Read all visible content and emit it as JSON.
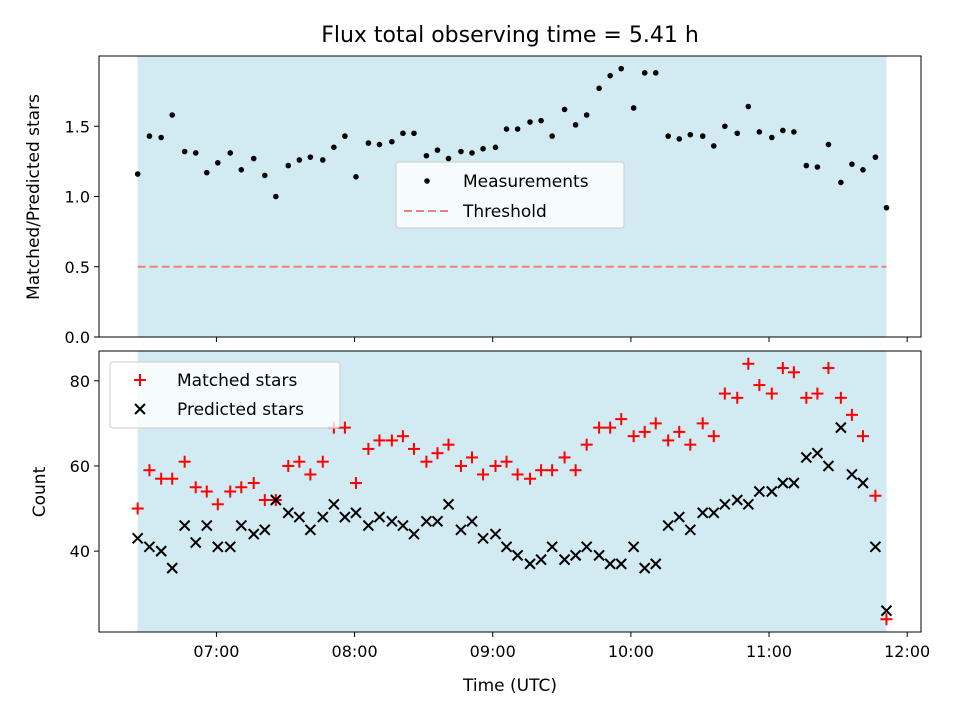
{
  "chart_data": [
    {
      "type": "scatter",
      "title": "Flux total observing time = 5.41 h",
      "xlabel": "",
      "ylabel": "Matched/Predicted stars",
      "ylim": [
        0,
        2.0
      ],
      "yticks": [
        "0.0",
        "0.5",
        "1.0",
        "1.5"
      ],
      "yticks_values": [
        0,
        0.5,
        1.0,
        1.5
      ],
      "xlim": [
        6.15,
        12.1
      ],
      "xticks_values": [
        7,
        8,
        9,
        10,
        11,
        12
      ],
      "shaded_span": [
        6.43,
        11.85
      ],
      "shade_color": "#add8e6",
      "legend_position": "center",
      "series": [
        {
          "name": "Measurements",
          "marker": "dot",
          "color": "#000000",
          "x": [
            6.43,
            6.515,
            6.6,
            6.68,
            6.77,
            6.85,
            6.93,
            7.01,
            7.1,
            7.18,
            7.27,
            7.35,
            7.43,
            7.52,
            7.6,
            7.68,
            7.77,
            7.85,
            7.93,
            8.01,
            8.1,
            8.18,
            8.27,
            8.35,
            8.43,
            8.52,
            8.6,
            8.68,
            8.77,
            8.85,
            8.93,
            9.02,
            9.1,
            9.18,
            9.27,
            9.35,
            9.43,
            9.52,
            9.6,
            9.68,
            9.77,
            9.85,
            9.93,
            10.02,
            10.1,
            10.18,
            10.27,
            10.35,
            10.43,
            10.52,
            10.6,
            10.68,
            10.77,
            10.85,
            10.93,
            11.02,
            11.1,
            11.18,
            11.27,
            11.35,
            11.43,
            11.52,
            11.6,
            11.68,
            11.77,
            11.85
          ],
          "values": [
            1.16,
            1.43,
            1.42,
            1.58,
            1.32,
            1.31,
            1.17,
            1.24,
            1.31,
            1.19,
            1.27,
            1.15,
            1.0,
            1.22,
            1.26,
            1.28,
            1.26,
            1.35,
            1.43,
            1.14,
            1.38,
            1.37,
            1.39,
            1.45,
            1.45,
            1.29,
            1.33,
            1.27,
            1.32,
            1.31,
            1.34,
            1.35,
            1.48,
            1.48,
            1.53,
            1.54,
            1.43,
            1.62,
            1.51,
            1.58,
            1.77,
            1.86,
            1.91,
            1.63,
            1.88,
            1.88,
            1.43,
            1.41,
            1.44,
            1.43,
            1.36,
            1.5,
            1.45,
            1.64,
            1.46,
            1.42,
            1.47,
            1.46,
            1.22,
            1.21,
            1.37,
            1.1,
            1.23,
            1.19,
            1.28,
            0.92
          ]
        },
        {
          "name": "Threshold",
          "marker": "dashed-line",
          "color": "#f08080",
          "x": [
            6.43,
            11.85
          ],
          "values": [
            0.5,
            0.5
          ]
        }
      ]
    },
    {
      "type": "scatter",
      "title": "",
      "xlabel": "Time (UTC)",
      "ylabel": "Count",
      "ylim": [
        21,
        87
      ],
      "yticks": [
        "40",
        "60",
        "80"
      ],
      "yticks_values": [
        40,
        60,
        80
      ],
      "xlim": [
        6.15,
        12.1
      ],
      "xticks": [
        "07:00",
        "08:00",
        "09:00",
        "10:00",
        "11:00",
        "12:00"
      ],
      "xticks_values": [
        7,
        8,
        9,
        10,
        11,
        12
      ],
      "shaded_span": [
        6.43,
        11.85
      ],
      "shade_color": "#add8e6",
      "legend_position": "top-left",
      "series": [
        {
          "name": "Matched stars",
          "marker": "plus",
          "color": "#ff0000",
          "x": [
            6.43,
            6.515,
            6.6,
            6.68,
            6.77,
            6.85,
            6.93,
            7.01,
            7.1,
            7.18,
            7.27,
            7.35,
            7.43,
            7.52,
            7.6,
            7.68,
            7.77,
            7.85,
            7.93,
            8.01,
            8.1,
            8.18,
            8.27,
            8.35,
            8.43,
            8.52,
            8.6,
            8.68,
            8.77,
            8.85,
            8.93,
            9.02,
            9.1,
            9.18,
            9.27,
            9.35,
            9.43,
            9.52,
            9.6,
            9.68,
            9.77,
            9.85,
            9.93,
            10.02,
            10.1,
            10.18,
            10.27,
            10.35,
            10.43,
            10.52,
            10.6,
            10.68,
            10.77,
            10.85,
            10.93,
            11.02,
            11.1,
            11.18,
            11.27,
            11.35,
            11.43,
            11.52,
            11.6,
            11.68,
            11.77,
            11.85
          ],
          "values": [
            50,
            59,
            57,
            57,
            61,
            55,
            54,
            51,
            54,
            55,
            56,
            52,
            52,
            60,
            61,
            58,
            61,
            69,
            69,
            56,
            64,
            66,
            66,
            67,
            64,
            61,
            63,
            65,
            60,
            62,
            58,
            60,
            61,
            58,
            57,
            59,
            59,
            62,
            59,
            65,
            69,
            69,
            71,
            67,
            68,
            70,
            66,
            68,
            65,
            70,
            67,
            77,
            76,
            84,
            79,
            77,
            83,
            82,
            76,
            77,
            83,
            76,
            72,
            67,
            53,
            24
          ]
        },
        {
          "name": "Predicted stars",
          "marker": "x",
          "color": "#000000",
          "x": [
            6.43,
            6.515,
            6.6,
            6.68,
            6.77,
            6.85,
            6.93,
            7.01,
            7.1,
            7.18,
            7.27,
            7.35,
            7.43,
            7.52,
            7.6,
            7.68,
            7.77,
            7.85,
            7.93,
            8.01,
            8.1,
            8.18,
            8.27,
            8.35,
            8.43,
            8.52,
            8.6,
            8.68,
            8.77,
            8.85,
            8.93,
            9.02,
            9.1,
            9.18,
            9.27,
            9.35,
            9.43,
            9.52,
            9.6,
            9.68,
            9.77,
            9.85,
            9.93,
            10.02,
            10.1,
            10.18,
            10.27,
            10.35,
            10.43,
            10.52,
            10.6,
            10.68,
            10.77,
            10.85,
            10.93,
            11.02,
            11.1,
            11.18,
            11.27,
            11.35,
            11.43,
            11.52,
            11.6,
            11.68,
            11.77,
            11.85
          ],
          "values": [
            43,
            41,
            40,
            36,
            46,
            42,
            46,
            41,
            41,
            46,
            44,
            45,
            52,
            49,
            48,
            45,
            48,
            51,
            48,
            49,
            46,
            48,
            47,
            46,
            44,
            47,
            47,
            51,
            45,
            47,
            43,
            44,
            41,
            39,
            37,
            38,
            41,
            38,
            39,
            41,
            39,
            37,
            37,
            41,
            36,
            37,
            46,
            48,
            45,
            49,
            49,
            51,
            52,
            51,
            54,
            54,
            56,
            56,
            62,
            63,
            60,
            69,
            58,
            56,
            41,
            26
          ]
        }
      ]
    }
  ]
}
